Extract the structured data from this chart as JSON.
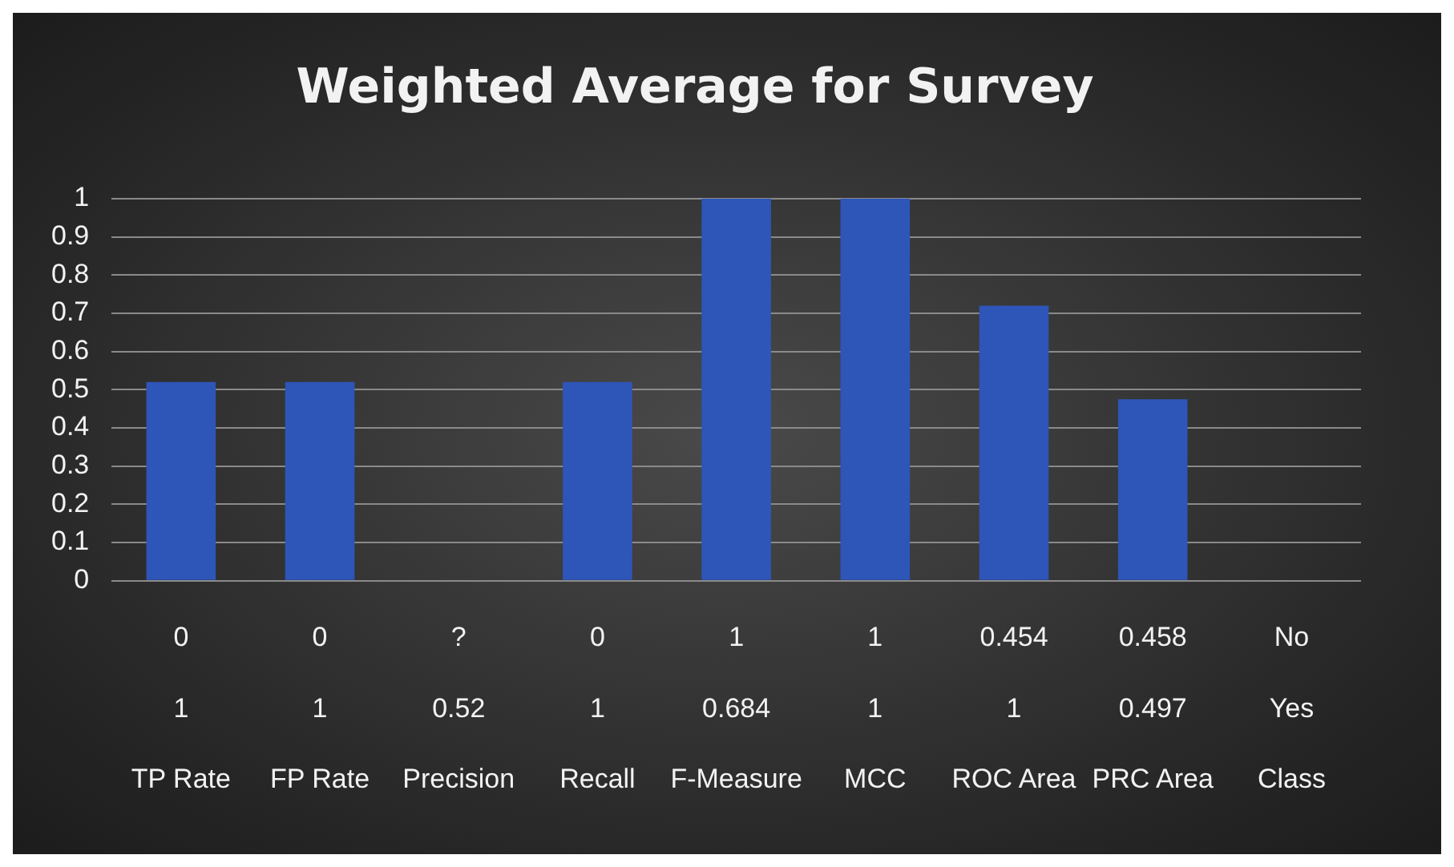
{
  "chart_data": {
    "type": "bar",
    "title": "Weighted Average for Survey",
    "categories": [
      "0\n1\nTP Rate",
      "0\n1\nFP Rate",
      "?\n0.52\nPrecision",
      "0\n1\nRecall",
      "1\n0.684\nF-Measure",
      "1\n1\nMCC",
      "0.454\n1\nROC Area",
      "0.458\n0.497\nPRC Area",
      "No\nYes\nClass"
    ],
    "values": [
      0.52,
      0.52,
      0,
      0.52,
      1,
      1,
      0.72,
      0.475,
      null
    ],
    "color": "#2e55b8",
    "ylim": [
      0,
      1
    ],
    "yticks": [
      0,
      0.1,
      0.2,
      0.3,
      0.4,
      0.5,
      0.6,
      0.7,
      0.8,
      0.9,
      1
    ],
    "grid": "y",
    "legend": false
  }
}
